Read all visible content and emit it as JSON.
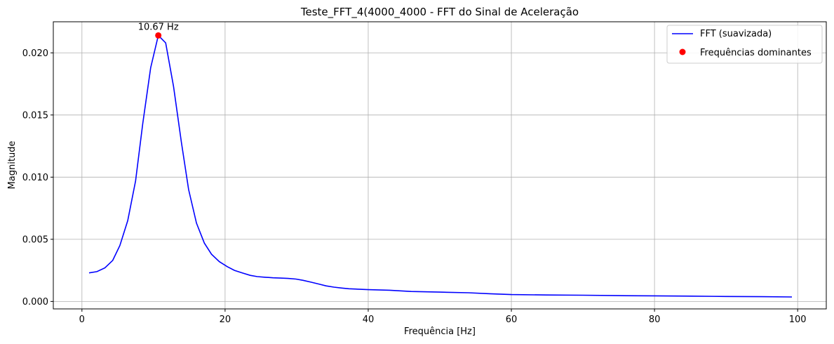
{
  "chart_data": {
    "type": "line",
    "title": "Teste_FFT_4(4000_4000 - FFT do Sinal de Aceleração",
    "xlabel": "Frequência [Hz]",
    "ylabel": "Magnitude",
    "xlim": [
      -4,
      104
    ],
    "ylim": [
      -0.0006,
      0.0225
    ],
    "xticks": [
      0,
      20,
      40,
      60,
      80,
      100
    ],
    "xtick_labels": [
      "0",
      "20",
      "40",
      "60",
      "80",
      "100"
    ],
    "yticks": [
      0.0,
      0.005,
      0.01,
      0.015,
      0.02
    ],
    "ytick_labels": [
      "0.000",
      "0.005",
      "0.010",
      "0.015",
      "0.020"
    ],
    "grid": true,
    "legend_position": "top-right",
    "series": [
      {
        "name": "FFT (suavizada)",
        "color": "#0000ff",
        "x": [
          1.0,
          2.1,
          3.2,
          4.3,
          5.3,
          6.4,
          7.5,
          8.5,
          9.6,
          10.67,
          11.7,
          12.8,
          13.9,
          14.9,
          16.0,
          17.1,
          18.1,
          19.2,
          20.3,
          21.3,
          22.4,
          23.5,
          24.5,
          25.6,
          26.7,
          27.7,
          28.8,
          29.9,
          30.9,
          32.0,
          33.1,
          34.1,
          35.2,
          36.3,
          37.3,
          40.0,
          43.0,
          46.0,
          50.0,
          54.0,
          57.0,
          60.0,
          65.0,
          70.0,
          75.0,
          80.0,
          85.0,
          90.0,
          95.0,
          99.2
        ],
        "y": [
          0.0023,
          0.0024,
          0.0027,
          0.0033,
          0.0045,
          0.0065,
          0.0097,
          0.0143,
          0.0188,
          0.0214,
          0.0208,
          0.0173,
          0.0128,
          0.009,
          0.0063,
          0.0047,
          0.0038,
          0.0032,
          0.0028,
          0.0025,
          0.0023,
          0.0021,
          0.002,
          0.00195,
          0.0019,
          0.00188,
          0.00185,
          0.0018,
          0.0017,
          0.00155,
          0.0014,
          0.00125,
          0.00115,
          0.00108,
          0.00102,
          0.00095,
          0.0009,
          0.0008,
          0.00075,
          0.0007,
          0.00062,
          0.00055,
          0.00052,
          0.0005,
          0.00047,
          0.00045,
          0.00043,
          0.0004,
          0.00038,
          0.00036
        ]
      },
      {
        "name": "Frequências dominantes",
        "color": "#ff0000",
        "marker": "circle",
        "x": [
          10.67
        ],
        "y": [
          0.0214
        ]
      }
    ],
    "annotations": [
      {
        "text": "10.67 Hz",
        "x": 10.67,
        "y": 0.0214
      }
    ]
  }
}
